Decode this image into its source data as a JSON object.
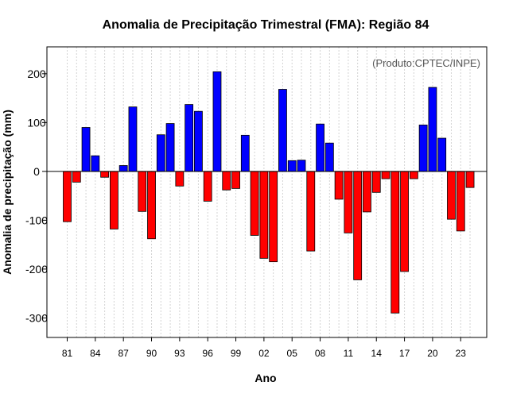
{
  "chart_data": {
    "type": "bar",
    "title": "Anomalia de Precipitação Trimestral (FMA): Região 84",
    "xlabel": "Ano",
    "ylabel": "Anomalia de precipitação (mm)",
    "annotation": "(Produto:CPTEC/INPE)",
    "ylim": [
      -340,
      255
    ],
    "yticks": [
      200,
      100,
      0,
      -100,
      -200,
      -300
    ],
    "ytick_labels": [
      "200",
      "100",
      "0",
      "-100",
      "-200",
      "-300"
    ],
    "years": [
      1981,
      1982,
      1983,
      1984,
      1985,
      1986,
      1987,
      1988,
      1989,
      1990,
      1991,
      1992,
      1993,
      1994,
      1995,
      1996,
      1997,
      1998,
      1999,
      2000,
      2001,
      2002,
      2003,
      2004,
      2005,
      2006,
      2007,
      2008,
      2009,
      2010,
      2011,
      2012,
      2013,
      2014,
      2015,
      2016,
      2017,
      2018,
      2019,
      2020,
      2021,
      2022,
      2023,
      2024
    ],
    "xtick_years": [
      1981,
      1984,
      1987,
      1990,
      1993,
      1996,
      1999,
      2002,
      2005,
      2008,
      2011,
      2014,
      2017,
      2020,
      2023
    ],
    "xtick_labels": [
      "81",
      "84",
      "87",
      "90",
      "93",
      "96",
      "99",
      "02",
      "05",
      "08",
      "11",
      "14",
      "17",
      "20",
      "23"
    ],
    "values": [
      -103,
      -22,
      90,
      32,
      -12,
      -118,
      12,
      132,
      -82,
      -138,
      75,
      98,
      -30,
      137,
      123,
      -61,
      204,
      -38,
      -35,
      74,
      -131,
      -178,
      -185,
      168,
      22,
      23,
      -163,
      97,
      58,
      -57,
      -126,
      -222,
      -83,
      -43,
      -15,
      -290,
      -205,
      -15,
      95,
      172,
      68,
      -98,
      -122,
      -33
    ],
    "colors": {
      "positive": "#0000ff",
      "negative": "#ff0000",
      "bar_edge": "#000000",
      "grid": "#d3d3d3"
    },
    "grid": true
  }
}
